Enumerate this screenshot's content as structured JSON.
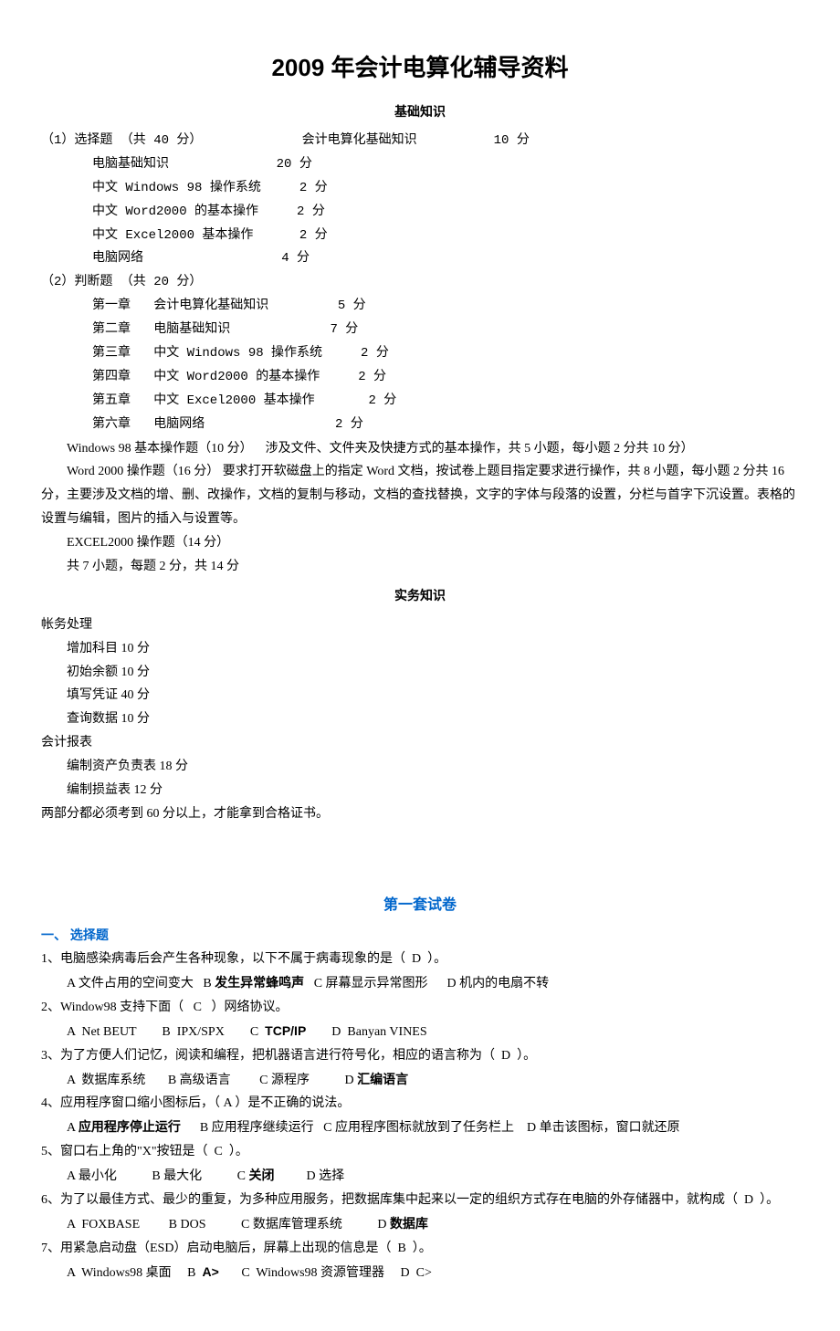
{
  "doc": {
    "title": "2009 年会计电算化辅导资料",
    "sub1": "基础知识",
    "sub2": "实务知识",
    "set1_title": "第一套试卷",
    "sec1_head": "一、 选择题"
  },
  "p1": {
    "l1a": "（1）选择题 （共 40 分）",
    "l1b": "会计电算化基础知识",
    "l1c": "10 分",
    "l2a": "电脑基础知识",
    "l2b": "20 分",
    "l3a": "中文 Windows 98 操作系统",
    "l3b": "2 分",
    "l4a": "中文 Word2000 的基本操作",
    "l4b": "2 分",
    "l5a": "中文 Excel2000 基本操作",
    "l5b": "2 分",
    "l6a": "电脑网络",
    "l6b": "4 分"
  },
  "p2": {
    "l1": "（2）判断题 （共 20 分）",
    "l2a": "第一章   会计电算化基础知识",
    "l2b": "5 分",
    "l3a": "第二章   电脑基础知识",
    "l3b": "7 分",
    "l4a": "第三章   中文 Windows 98 操作系统",
    "l4b": "2 分",
    "l5a": "第四章   中文 Word2000 的基本操作",
    "l5b": "2 分",
    "l6a": "第五章   中文 Excel2000 基本操作",
    "l6b": "2 分",
    "l7a": "第六章   电脑网络",
    "l7b": "2 分"
  },
  "p3": {
    "l1": "Windows 98 基本操作题（10 分）    涉及文件、文件夹及快捷方式的基本操作，共 5 小题，每小题 2 分共 10 分）",
    "l2": "Word 2000 操作题（16 分）    要求打开软磁盘上的指定 Word 文档，按试卷上题目指定要求进行操作，共 8 小题，每小题 2 分共 16分，主要涉及文档的增、删、改操作，文档的复制与移动，文档的查找替换，文字的字体与段落的设置，分栏与首字下沉设置。表格的设置与编辑，图片的插入与设置等。",
    "l3": "EXCEL2000 操作题（14 分）",
    "l4": "共 7 小题，每题 2 分，共 14 分"
  },
  "p4": {
    "h1": "帐务处理",
    "l1": "增加科目 10 分",
    "l2": "初始余额 10 分",
    "l3": "填写凭证 40 分",
    "l4": "查询数据 10 分",
    "h2": "会计报表",
    "l5": "编制资产负责表 18 分",
    "l6": "编制损益表 12 分",
    "note": "两部分都必须考到 60 分以上，才能拿到合格证书。"
  },
  "q": {
    "q1": "1、电脑感染病毒后会产生各种现象，以下不属于病毒现象的是（  D  ）。",
    "q1o_a": "A 文件占用的空间变大   B ",
    "q1o_b": "发生异常蜂鸣声",
    "q1o_c": "   C 屏幕显示异常图形      D 机内的电扇不转",
    "q2": "2、Window98 支持下面（   C   ）网络协议。",
    "q2o_a": "A  Net BEUT        B  IPX/SPX        C  ",
    "q2o_b": "TCP/IP",
    "q2o_c": "        D  Banyan VINES",
    "q3": "3、为了方便人们记忆，阅读和编程，把机器语言进行符号化，相应的语言称为（  D  ）。",
    "q3o_a": "A  数据库系统       B 高级语言         C 源程序           D ",
    "q3o_b": "汇编语言",
    "q4": "4、应用程序窗口缩小图标后，（ A ）是不正确的说法。",
    "q4o_a": "A ",
    "q4o_b": "应用程序停止运行",
    "q4o_c": "      B 应用程序继续运行   C 应用程序图标就放到了任务栏上    D 单击该图标，窗口就还原",
    "q5": "5、窗口右上角的\"X\"按钮是（  C  ）。",
    "q5o_a": "A 最小化           B 最大化           C ",
    "q5o_b": "关闭",
    "q5o_c": "          D 选择",
    "q6": "6、为了以最佳方式、最少的重复，为多种应用服务，把数据库集中起来以一定的组织方式存在电脑的外存储器中，就构成（  D  ）。",
    "q6o_a": "A  FOXBASE         B DOS           C 数据库管理系统           D ",
    "q6o_b": "数据库",
    "q7": "7、用紧急启动盘（ESD）启动电脑后，屏幕上出现的信息是（  B  ）。",
    "q7o_a": "A  Windows98 桌面     B  ",
    "q7o_b": "A>",
    "q7o_c": "       C  Windows98 资源管理器     D  C>"
  }
}
